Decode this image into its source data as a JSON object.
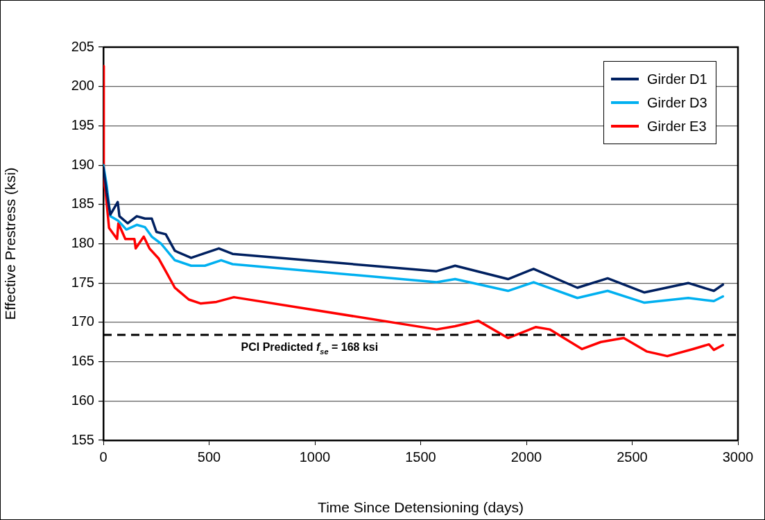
{
  "chart_data": {
    "type": "line",
    "xlabel": "Time Since Detensioning (days)",
    "ylabel": "Effective Prestress (ksi)",
    "xlim": [
      0,
      3000
    ],
    "xticks": [
      0,
      500,
      1000,
      1500,
      2000,
      2500,
      3000
    ],
    "ylim": [
      155,
      205
    ],
    "yticks": [
      155,
      160,
      165,
      170,
      175,
      180,
      185,
      190,
      195,
      200,
      205
    ],
    "grid": "y",
    "legend": "top right",
    "marker": "none",
    "line_style": "solid",
    "ref_lines": [
      {
        "axis": "y",
        "value": 168.4,
        "label": "PCI Predicted f$_{se}$ = 168 ksi",
        "color": "#000000",
        "line_style": "dashed"
      }
    ],
    "series": [
      {
        "name": "Girder D1",
        "color": "#002060",
        "x": [
          0,
          16,
          33,
          68,
          76,
          115,
          158,
          197,
          229,
          251,
          295,
          338,
          415,
          480,
          546,
          611,
          1575,
          1663,
          1913,
          2034,
          2241,
          2384,
          2558,
          2765,
          2886,
          2929
        ],
        "values": [
          189.7,
          186.5,
          183.7,
          185.3,
          183.5,
          182.6,
          183.5,
          183.2,
          183.2,
          181.5,
          181.2,
          179.1,
          178.2,
          178.8,
          179.4,
          178.7,
          176.5,
          177.2,
          175.5,
          176.8,
          174.4,
          175.6,
          173.8,
          175,
          174,
          174.8
        ]
      },
      {
        "name": "Girder D3",
        "color": "#00b0f0",
        "x": [
          0,
          16,
          33,
          71,
          109,
          158,
          197,
          229,
          273,
          338,
          415,
          480,
          557,
          611,
          1575,
          1663,
          1913,
          2034,
          2241,
          2384,
          2558,
          2765,
          2886,
          2929
        ],
        "values": [
          190,
          187.4,
          183.5,
          182.9,
          181.8,
          182.4,
          182.1,
          180.9,
          180,
          177.9,
          177.2,
          177.2,
          177.9,
          177.4,
          175.1,
          175.5,
          174,
          175.1,
          173.1,
          174,
          172.5,
          173.1,
          172.7,
          173.3
        ]
      },
      {
        "name": "Girder E3",
        "color": "#ff0000",
        "x": [
          0,
          2,
          11,
          27,
          65,
          71,
          104,
          147,
          153,
          191,
          218,
          262,
          295,
          338,
          404,
          459,
          535,
          617,
          1575,
          1663,
          1772,
          1913,
          2045,
          2110,
          2263,
          2352,
          2460,
          2568,
          2666,
          2787,
          2863,
          2886,
          2929
        ],
        "values": [
          202.6,
          188,
          186.5,
          182,
          180.6,
          182.6,
          180.6,
          180.6,
          179.4,
          180.9,
          179.4,
          178.1,
          176.5,
          174.4,
          172.9,
          172.4,
          172.6,
          173.2,
          169.1,
          169.5,
          170.2,
          168,
          169.4,
          169.1,
          166.6,
          167.5,
          168,
          166.3,
          165.7,
          166.6,
          167.2,
          166.5,
          167.1
        ]
      }
    ]
  }
}
